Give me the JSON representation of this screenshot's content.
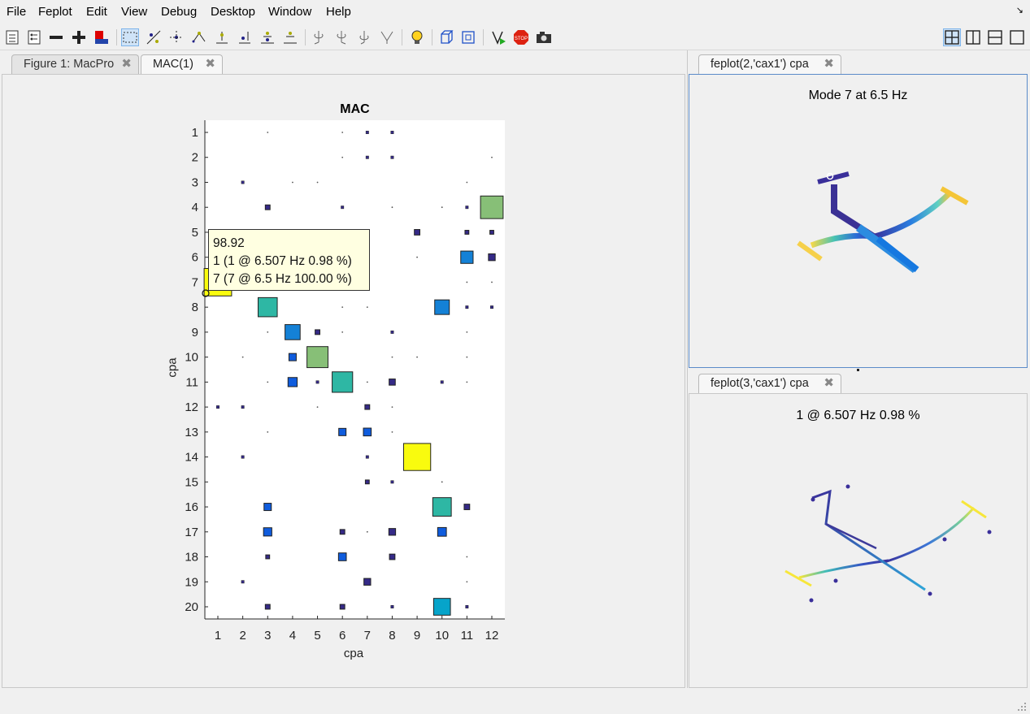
{
  "menubar": {
    "items": [
      "File",
      "Feplot",
      "Edit",
      "View",
      "Debug",
      "Desktop",
      "Window",
      "Help"
    ],
    "corner_icon": "undock-arrow-icon"
  },
  "toolbar": {
    "icons": [
      "checklist-icon",
      "checklist-icon",
      "minus-icon",
      "plus-icon",
      "colorbar-icon",
      "select-rectangle-icon",
      "node-select-icon",
      "node-select-icon",
      "node-select-icon",
      "node-select-icon",
      "node-select-icon",
      "node-select-icon",
      "node-select-icon",
      "rotate-icon",
      "rotate-icon",
      "rotate-icon",
      "rotate-icon",
      "lightbulb-icon",
      "cube-view-icon",
      "cube-view-icon",
      "play-icon",
      "stop-icon",
      "camera-icon"
    ],
    "layout_icons": [
      "grid-layout-icon",
      "columns-layout-icon",
      "rows-layout-icon",
      "single-window-icon"
    ]
  },
  "left_panel": {
    "tabs": [
      {
        "label": "Figure 1: MacPro",
        "selected": false
      },
      {
        "label": "MAC(1)",
        "selected": true
      }
    ]
  },
  "chart_data": [
    {
      "type": "scatter",
      "title": "MAC",
      "xlabel": "cpa",
      "ylabel": "cpa",
      "xlim": [
        1,
        12
      ],
      "ylim": [
        1,
        20
      ],
      "x_ticks": [
        1,
        2,
        3,
        4,
        5,
        6,
        7,
        8,
        9,
        10,
        11,
        12
      ],
      "y_ticks": [
        1,
        2,
        3,
        4,
        5,
        6,
        7,
        8,
        9,
        10,
        11,
        12,
        13,
        14,
        15,
        16,
        17,
        18,
        19,
        20
      ],
      "y_reversed": true,
      "grid": false,
      "colormap": [
        "#352a87",
        "#0f5cdd",
        "#1481d6",
        "#06a4ca",
        "#2eb7a4",
        "#87bf77",
        "#d1bb59",
        "#fec832",
        "#f9fb0e"
      ],
      "points": [
        {
          "x": 3,
          "y": 1,
          "v": 0.5
        },
        {
          "x": 6,
          "y": 1,
          "v": 0.5
        },
        {
          "x": 7,
          "y": 1,
          "v": 1
        },
        {
          "x": 8,
          "y": 1,
          "v": 1
        },
        {
          "x": 6,
          "y": 2,
          "v": 0.5
        },
        {
          "x": 7,
          "y": 2,
          "v": 1
        },
        {
          "x": 8,
          "y": 2,
          "v": 1
        },
        {
          "x": 12,
          "y": 2,
          "v": 0.5
        },
        {
          "x": 2,
          "y": 3,
          "v": 1
        },
        {
          "x": 4,
          "y": 3,
          "v": 0.5
        },
        {
          "x": 5,
          "y": 3,
          "v": 0.5
        },
        {
          "x": 11,
          "y": 3,
          "v": 0.5
        },
        {
          "x": 3,
          "y": 4,
          "v": 3
        },
        {
          "x": 6,
          "y": 4,
          "v": 1
        },
        {
          "x": 8,
          "y": 4,
          "v": 0.5
        },
        {
          "x": 10,
          "y": 4,
          "v": 0.5
        },
        {
          "x": 11,
          "y": 4,
          "v": 1
        },
        {
          "x": 12,
          "y": 4,
          "v": 67
        },
        {
          "x": 9,
          "y": 5,
          "v": 4
        },
        {
          "x": 11,
          "y": 5,
          "v": 2
        },
        {
          "x": 12,
          "y": 5,
          "v": 2
        },
        {
          "x": 9,
          "y": 6,
          "v": 0.5
        },
        {
          "x": 11,
          "y": 6,
          "v": 20
        },
        {
          "x": 12,
          "y": 6,
          "v": 6
        },
        {
          "x": 1,
          "y": 7,
          "v": 98.92
        },
        {
          "x": 11,
          "y": 7,
          "v": 0.5
        },
        {
          "x": 12,
          "y": 7,
          "v": 0.5
        },
        {
          "x": 3,
          "y": 8,
          "v": 48
        },
        {
          "x": 6,
          "y": 8,
          "v": 0.5
        },
        {
          "x": 7,
          "y": 8,
          "v": 0.5
        },
        {
          "x": 10,
          "y": 8,
          "v": 28
        },
        {
          "x": 11,
          "y": 8,
          "v": 1
        },
        {
          "x": 12,
          "y": 8,
          "v": 1
        },
        {
          "x": 3,
          "y": 9,
          "v": 0.5
        },
        {
          "x": 4,
          "y": 9,
          "v": 30
        },
        {
          "x": 5,
          "y": 9,
          "v": 3
        },
        {
          "x": 6,
          "y": 9,
          "v": 0.5
        },
        {
          "x": 8,
          "y": 9,
          "v": 1
        },
        {
          "x": 11,
          "y": 9,
          "v": 0.5
        },
        {
          "x": 2,
          "y": 10,
          "v": 0.5
        },
        {
          "x": 4,
          "y": 10,
          "v": 7
        },
        {
          "x": 5,
          "y": 10,
          "v": 58
        },
        {
          "x": 8,
          "y": 10,
          "v": 0.5
        },
        {
          "x": 9,
          "y": 10,
          "v": 0.5
        },
        {
          "x": 11,
          "y": 10,
          "v": 0.5
        },
        {
          "x": 3,
          "y": 11,
          "v": 0.5
        },
        {
          "x": 4,
          "y": 11,
          "v": 11
        },
        {
          "x": 5,
          "y": 11,
          "v": 1
        },
        {
          "x": 6,
          "y": 11,
          "v": 55
        },
        {
          "x": 7,
          "y": 11,
          "v": 0.5
        },
        {
          "x": 8,
          "y": 11,
          "v": 5
        },
        {
          "x": 10,
          "y": 11,
          "v": 1
        },
        {
          "x": 11,
          "y": 11,
          "v": 0.5
        },
        {
          "x": 1,
          "y": 12,
          "v": 1
        },
        {
          "x": 2,
          "y": 12,
          "v": 1
        },
        {
          "x": 5,
          "y": 12,
          "v": 0.5
        },
        {
          "x": 7,
          "y": 12,
          "v": 3
        },
        {
          "x": 8,
          "y": 12,
          "v": 0.5
        },
        {
          "x": 3,
          "y": 13,
          "v": 0.5
        },
        {
          "x": 6,
          "y": 13,
          "v": 7
        },
        {
          "x": 7,
          "y": 13,
          "v": 8
        },
        {
          "x": 8,
          "y": 13,
          "v": 0.5
        },
        {
          "x": 2,
          "y": 14,
          "v": 1
        },
        {
          "x": 7,
          "y": 14,
          "v": 1
        },
        {
          "x": 9,
          "y": 14,
          "v": 96
        },
        {
          "x": 7,
          "y": 15,
          "v": 2
        },
        {
          "x": 8,
          "y": 15,
          "v": 1
        },
        {
          "x": 10,
          "y": 15,
          "v": 0.5
        },
        {
          "x": 3,
          "y": 16,
          "v": 7
        },
        {
          "x": 10,
          "y": 16,
          "v": 45
        },
        {
          "x": 11,
          "y": 16,
          "v": 4
        },
        {
          "x": 3,
          "y": 17,
          "v": 9
        },
        {
          "x": 6,
          "y": 17,
          "v": 3
        },
        {
          "x": 7,
          "y": 17,
          "v": 0.5
        },
        {
          "x": 8,
          "y": 17,
          "v": 6
        },
        {
          "x": 10,
          "y": 17,
          "v": 10
        },
        {
          "x": 3,
          "y": 18,
          "v": 2
        },
        {
          "x": 6,
          "y": 18,
          "v": 8
        },
        {
          "x": 8,
          "y": 18,
          "v": 4
        },
        {
          "x": 11,
          "y": 18,
          "v": 0.5
        },
        {
          "x": 2,
          "y": 19,
          "v": 1
        },
        {
          "x": 7,
          "y": 19,
          "v": 6
        },
        {
          "x": 11,
          "y": 19,
          "v": 0.5
        },
        {
          "x": 3,
          "y": 20,
          "v": 3
        },
        {
          "x": 6,
          "y": 20,
          "v": 3
        },
        {
          "x": 8,
          "y": 20,
          "v": 1
        },
        {
          "x": 10,
          "y": 20,
          "v": 37
        },
        {
          "x": 11,
          "y": 20,
          "v": 1
        }
      ]
    }
  ],
  "datatip": {
    "line1": "98.92",
    "line2": "1 (1 @ 6.507 Hz 0.98 %)",
    "line3": "7 (7 @ 6.5 Hz 100.00 %)"
  },
  "top_right_panel": {
    "tab_label": "feplot(2,'cax1') cpa",
    "title": "Mode 7 at 6.5 Hz"
  },
  "bottom_right_panel": {
    "tab_label": "feplot(3,'cax1') cpa",
    "title": "1 @ 6.507 Hz 0.98 %"
  }
}
